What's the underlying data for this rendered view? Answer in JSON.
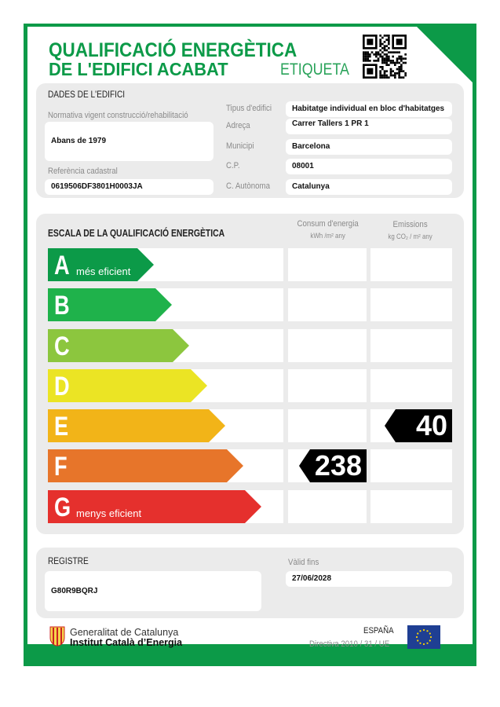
{
  "header": {
    "title_line1": "QUALIFICACIÓ ENERGÈTICA",
    "title_line2": "DE L'EDIFICI ACABAT",
    "label": "ETIQUETA",
    "qr_icon": "qr-code-icon",
    "brand_color": "#0c9a48"
  },
  "building": {
    "section_title": "DADES DE L'EDIFICI",
    "regulation_label": "Normativa vigent construcció/rehabilitació",
    "regulation_value": "Abans de 1979",
    "cadastral_label": "Referència cadastral",
    "cadastral_value": "0619506DF3801H0003JA",
    "fields": [
      {
        "label": "Tipus d'edifici",
        "value": "Habitatge individual en bloc d'habitatges"
      },
      {
        "label": "Adreça",
        "value": "Carrer Tallers 1 PR 1"
      },
      {
        "label": "Municipi",
        "value": "Barcelona"
      },
      {
        "label": "C.P.",
        "value": "08001"
      },
      {
        "label": "C. Autònoma",
        "value": "Catalunya"
      }
    ]
  },
  "scale": {
    "section_title": "ESCALA DE LA QUALIFICACIÓ ENERGÈTICA",
    "col1_title": "Consum d'energia",
    "col1_unit": "kWh /m² any",
    "col2_title": "Emissions",
    "col2_unit": "kg CO₂ / m² any",
    "classes": [
      {
        "letter": "A",
        "sub": "més eficient",
        "color": "#0c9a48"
      },
      {
        "letter": "B",
        "sub": "",
        "color": "#1fb24b"
      },
      {
        "letter": "C",
        "sub": "",
        "color": "#8cc63e"
      },
      {
        "letter": "D",
        "sub": "",
        "color": "#ebe424"
      },
      {
        "letter": "E",
        "sub": "",
        "color": "#f2b418"
      },
      {
        "letter": "F",
        "sub": "",
        "color": "#e7752a"
      },
      {
        "letter": "G",
        "sub": "menys eficient",
        "color": "#e5302d"
      }
    ],
    "energy": {
      "value": "238",
      "class": "F"
    },
    "emissions": {
      "value": "40",
      "class": "E"
    }
  },
  "register": {
    "label": "REGISTRE",
    "value": "G80R9BQRJ",
    "valid_label": "Vàlid fins",
    "valid_value": "27/06/2028"
  },
  "footer": {
    "org1": "Generalitat de Catalunya",
    "org2": "Institut Català d’Energia",
    "country": "ESPAÑA",
    "directive": "Directiva 2010 / 31 / UE",
    "eu_icon": "eu-flag-icon",
    "coat_icon": "catalonia-coat-icon"
  }
}
